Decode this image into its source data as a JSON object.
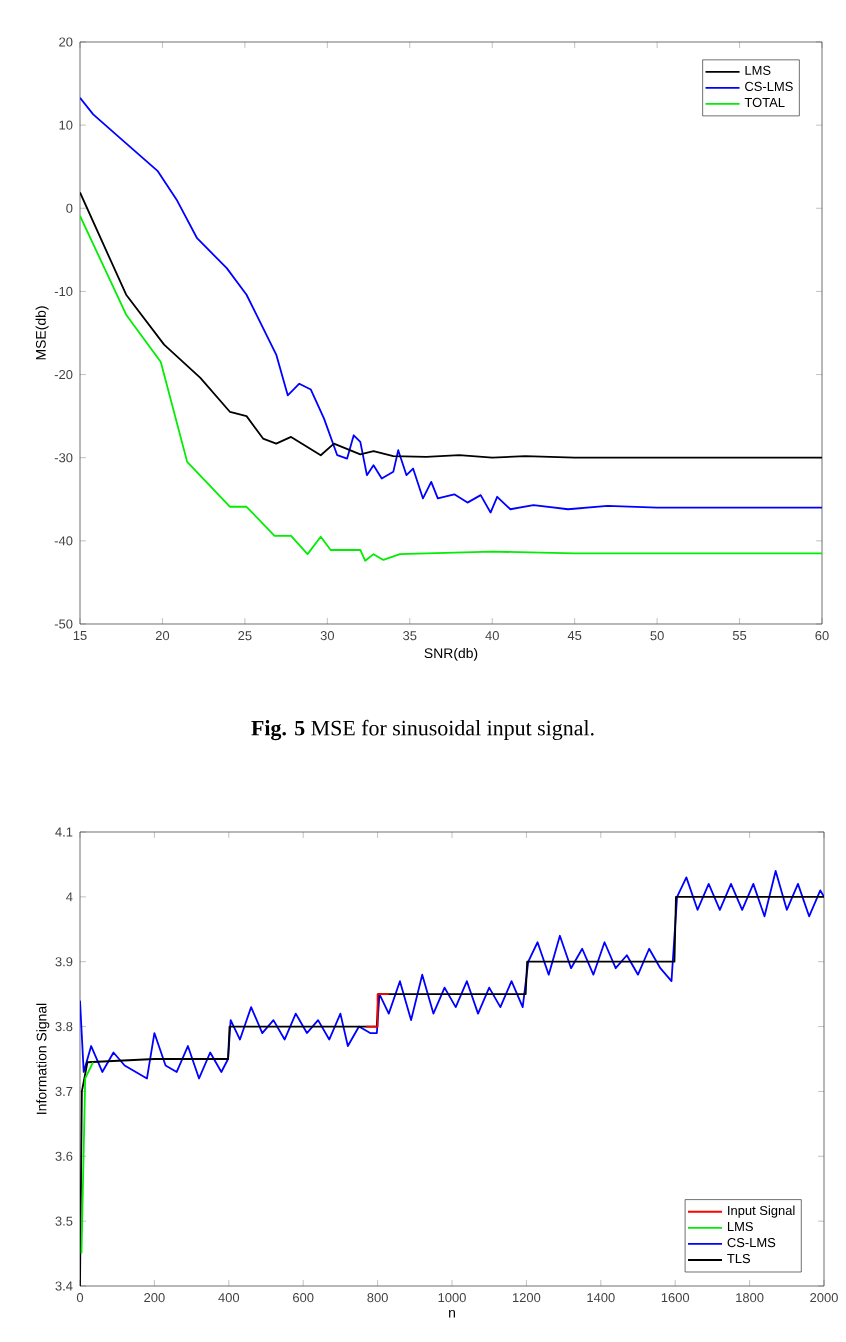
{
  "chart_data": [
    {
      "type": "line",
      "xlabel": "SNR(db)",
      "ylabel": "MSE(db)",
      "xlim": [
        15,
        60
      ],
      "ylim": [
        -50,
        20
      ],
      "xticks": [
        15,
        20,
        25,
        30,
        35,
        40,
        45,
        50,
        55,
        60
      ],
      "yticks": [
        -50,
        -40,
        -30,
        -20,
        -10,
        0,
        10,
        20
      ],
      "legend": "top right",
      "line_style": "solid",
      "annotations": [
        "**Fig. 5** MSE for sinusoidal input signal."
      ],
      "series": [
        {
          "name": "LMS",
          "color": "#000000",
          "x": [
            15,
            17.8,
            20.1,
            22.3,
            24.1,
            25.1,
            26.1,
            26.9,
            27.8,
            29.6,
            30.4,
            32,
            32.8,
            34,
            36,
            38,
            40,
            42,
            45,
            50,
            55,
            60
          ],
          "values": [
            1.9,
            -10.4,
            -16.4,
            -20.4,
            -24.5,
            -25,
            -27.7,
            -28.3,
            -27.5,
            -29.7,
            -28.3,
            -29.6,
            -29.2,
            -29.8,
            -29.9,
            -29.7,
            -30,
            -29.8,
            -30,
            -30,
            -30,
            -30
          ]
        },
        {
          "name": "CS-LMS",
          "color": "#0000ff",
          "x": [
            15,
            15.8,
            17.4,
            19.7,
            20.9,
            22.1,
            23.9,
            25.1,
            26.9,
            27.6,
            28.3,
            29,
            29.8,
            30.6,
            31.2,
            31.6,
            32,
            32.4,
            32.8,
            33.3,
            34,
            34.3,
            34.8,
            35.2,
            35.8,
            36.3,
            36.7,
            37.7,
            38.5,
            39.3,
            39.9,
            40.3,
            41.1,
            42.5,
            44.6,
            47,
            50,
            55,
            60
          ],
          "values": [
            13.3,
            11.3,
            8.5,
            4.5,
            0.9,
            -3.6,
            -7.2,
            -10.4,
            -17.6,
            -22.5,
            -21.1,
            -21.8,
            -25.3,
            -29.7,
            -30.1,
            -27.3,
            -28.1,
            -32.1,
            -30.9,
            -32.5,
            -31.7,
            -29.1,
            -32.1,
            -31.3,
            -34.9,
            -32.9,
            -34.9,
            -34.4,
            -35.4,
            -34.5,
            -36.6,
            -34.7,
            -36.2,
            -35.7,
            -36.2,
            -35.8,
            -36,
            -36,
            -36
          ]
        },
        {
          "name": "TOTAL",
          "color": "#00ee00",
          "x": [
            15,
            17.8,
            19.9,
            21.5,
            24.1,
            25.1,
            26.8,
            27.8,
            28.8,
            29.6,
            30.2,
            32,
            32.3,
            32.8,
            33.4,
            34.4,
            36,
            40,
            45,
            50,
            55,
            60
          ],
          "values": [
            -0.9,
            -12.8,
            -18.5,
            -30.5,
            -35.9,
            -35.9,
            -39.4,
            -39.4,
            -41.6,
            -39.5,
            -41.1,
            -41.1,
            -42.4,
            -41.6,
            -42.3,
            -41.6,
            -41.5,
            -41.3,
            -41.5,
            -41.5,
            -41.5,
            -41.5
          ]
        }
      ]
    },
    {
      "type": "line",
      "xlabel": "n",
      "ylabel": "Information Signal",
      "xlim": [
        0,
        2000
      ],
      "ylim": [
        3.4,
        4.1
      ],
      "xticks": [
        0,
        200,
        400,
        600,
        800,
        1000,
        1200,
        1400,
        1600,
        1800,
        2000
      ],
      "yticks": [
        3.4,
        3.5,
        3.6,
        3.7,
        3.8,
        3.9,
        4,
        4.1
      ],
      "legend": "bottom right",
      "line_style": "solid",
      "series": [
        {
          "name": "Input Signal",
          "color": "#ff0000",
          "x": [
            770,
            800,
            800,
            830
          ],
          "values": [
            3.8,
            3.8,
            3.85,
            3.85
          ]
        },
        {
          "name": "LMS",
          "color": "#00ee00",
          "x": [
            4,
            14,
            35
          ],
          "values": [
            3.45,
            3.72,
            3.745
          ]
        },
        {
          "name": "CS-LMS",
          "color": "#0000ff",
          "x": [
            0,
            10,
            30,
            60,
            90,
            120,
            150,
            180,
            200,
            230,
            260,
            290,
            320,
            350,
            380,
            398,
            405,
            430,
            460,
            490,
            520,
            550,
            580,
            610,
            640,
            670,
            700,
            720,
            750,
            780,
            798,
            805,
            830,
            860,
            890,
            920,
            950,
            980,
            1010,
            1040,
            1070,
            1100,
            1130,
            1160,
            1190,
            1205,
            1230,
            1260,
            1290,
            1320,
            1350,
            1380,
            1410,
            1440,
            1470,
            1500,
            1530,
            1560,
            1590,
            1605,
            1630,
            1660,
            1690,
            1720,
            1750,
            1780,
            1810,
            1840,
            1870,
            1900,
            1930,
            1960,
            1990,
            2000
          ],
          "values": [
            3.84,
            3.73,
            3.77,
            3.73,
            3.76,
            3.74,
            3.73,
            3.72,
            3.79,
            3.74,
            3.73,
            3.77,
            3.72,
            3.76,
            3.73,
            3.75,
            3.81,
            3.78,
            3.83,
            3.79,
            3.81,
            3.78,
            3.82,
            3.79,
            3.81,
            3.78,
            3.82,
            3.77,
            3.8,
            3.79,
            3.79,
            3.85,
            3.82,
            3.87,
            3.81,
            3.88,
            3.82,
            3.86,
            3.83,
            3.87,
            3.82,
            3.86,
            3.83,
            3.87,
            3.83,
            3.9,
            3.93,
            3.88,
            3.94,
            3.89,
            3.92,
            3.88,
            3.93,
            3.89,
            3.91,
            3.88,
            3.92,
            3.89,
            3.87,
            4.0,
            4.03,
            3.98,
            4.02,
            3.98,
            4.02,
            3.98,
            4.02,
            3.97,
            4.04,
            3.98,
            4.02,
            3.97,
            4.01,
            4.0
          ]
        },
        {
          "name": "TLS",
          "color": "#000000",
          "x": [
            0,
            5,
            20,
            200,
            398,
            402,
            600,
            798,
            802,
            1000,
            1198,
            1202,
            1400,
            1598,
            1602,
            1800,
            2000
          ],
          "values": [
            3.4,
            3.7,
            3.745,
            3.75,
            3.75,
            3.8,
            3.8,
            3.8,
            3.85,
            3.85,
            3.85,
            3.9,
            3.9,
            3.9,
            4.0,
            4.0,
            4.0
          ]
        }
      ]
    }
  ]
}
